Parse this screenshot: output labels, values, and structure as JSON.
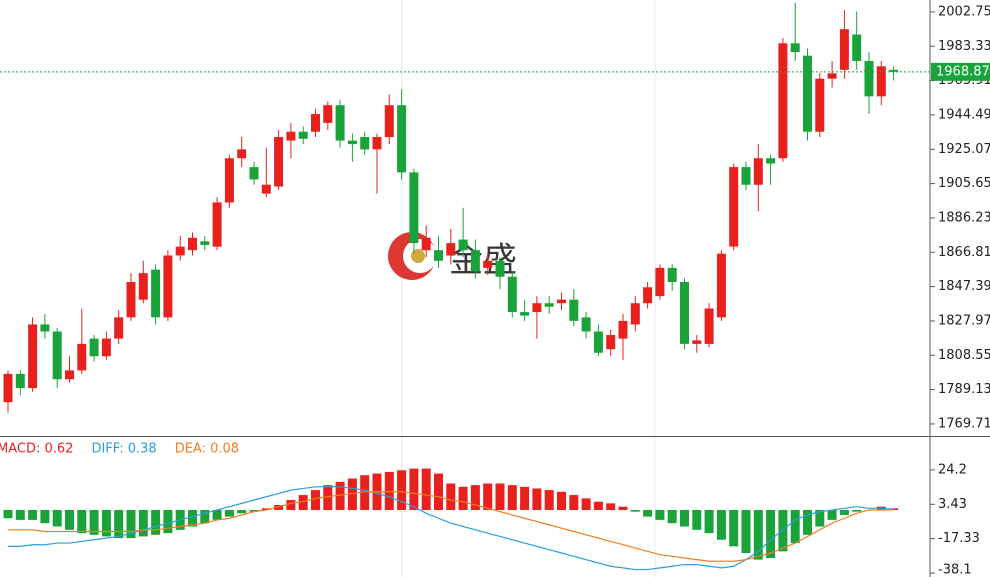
{
  "chart_data": {
    "type": "candlestick",
    "watermark": "金盛",
    "up_color": "#e8201e",
    "down_color": "#1aa33a",
    "open": [
      1782,
      1798,
      1790,
      1826,
      1822,
      1795,
      1800,
      1818,
      1808,
      1818,
      1830,
      1840,
      1857,
      1830,
      1865,
      1868,
      1873,
      1870,
      1895,
      1920,
      1915,
      1900,
      1904,
      1930,
      1935,
      1935,
      1940,
      1950,
      1930,
      1932,
      1925,
      1932,
      1950,
      1912,
      1868,
      1868,
      1865,
      1874,
      1868,
      1858,
      1862,
      1853,
      1833,
      1833,
      1838,
      1838,
      1840,
      1830,
      1822,
      1812,
      1818,
      1826,
      1838,
      1842,
      1858,
      1850,
      1815,
      1815,
      1830,
      1870,
      1915,
      1905,
      1920,
      1920,
      1985,
      1978,
      1935,
      1965,
      1970,
      1990,
      1975,
      1955,
      1970
    ],
    "high": [
      1800,
      1800,
      1830,
      1832,
      1824,
      1808,
      1835,
      1820,
      1822,
      1834,
      1855,
      1862,
      1860,
      1868,
      1876,
      1878,
      1876,
      1898,
      1922,
      1932,
      1918,
      1926,
      1936,
      1940,
      1938,
      1948,
      1952,
      1953,
      1934,
      1935,
      1934,
      1956,
      1959,
      1914,
      1882,
      1876,
      1880,
      1892,
      1874,
      1866,
      1864,
      1856,
      1840,
      1842,
      1842,
      1844,
      1846,
      1833,
      1826,
      1823,
      1832,
      1842,
      1850,
      1860,
      1860,
      1852,
      1820,
      1838,
      1868,
      1917,
      1918,
      1928,
      1922,
      1988,
      2008,
      1982,
      1968,
      1975,
      2004,
      2003,
      1980,
      1975,
      1972
    ],
    "low": [
      1776,
      1786,
      1788,
      1818,
      1790,
      1793,
      1798,
      1805,
      1806,
      1815,
      1828,
      1838,
      1826,
      1828,
      1862,
      1865,
      1868,
      1868,
      1892,
      1915,
      1905,
      1898,
      1902,
      1920,
      1928,
      1932,
      1936,
      1926,
      1918,
      1922,
      1900,
      1928,
      1908,
      1866,
      1864,
      1858,
      1860,
      1864,
      1852,
      1854,
      1846,
      1830,
      1828,
      1818,
      1832,
      1834,
      1825,
      1818,
      1808,
      1808,
      1806,
      1822,
      1835,
      1840,
      1845,
      1812,
      1810,
      1813,
      1828,
      1868,
      1902,
      1890,
      1905,
      1918,
      1975,
      1930,
      1932,
      1960,
      1965,
      1970,
      1945,
      1950,
      1964
    ],
    "close": [
      1798,
      1790,
      1826,
      1822,
      1795,
      1800,
      1815,
      1808,
      1818,
      1830,
      1850,
      1855,
      1830,
      1865,
      1870,
      1875,
      1871,
      1895,
      1920,
      1925,
      1908,
      1905,
      1932,
      1935,
      1931,
      1945,
      1950,
      1930,
      1928,
      1925,
      1932,
      1950,
      1912,
      1872,
      1875,
      1862,
      1872,
      1868,
      1856,
      1862,
      1853,
      1833,
      1831,
      1838,
      1836,
      1840,
      1828,
      1822,
      1810,
      1820,
      1828,
      1838,
      1847,
      1858,
      1850,
      1815,
      1817,
      1835,
      1866,
      1915,
      1905,
      1920,
      1917,
      1985,
      1980,
      1935,
      1965,
      1968,
      1993,
      1975,
      1955,
      1972,
      1968.87
    ],
    "ylim": [
      1762.9,
      2009.5
    ],
    "yticks": [
      2002.75,
      1983.33,
      1963.91,
      1944.49,
      1925.07,
      1905.65,
      1886.23,
      1866.81,
      1847.39,
      1827.97,
      1808.55,
      1789.13,
      1769.71
    ],
    "current_price": 1968.87,
    "current_color": "#1aa33a",
    "macd": {
      "labels": [
        {
          "text": "MACD: 0.62",
          "color": "#e8201e"
        },
        {
          "text": "DIFF: 0.38",
          "color": "#2e9de0"
        },
        {
          "text": "DEA: 0.08",
          "color": "#f07f20"
        }
      ],
      "histogram": [
        -5,
        -6,
        -6,
        -8,
        -10,
        -12,
        -14,
        -15,
        -16,
        -17,
        -17,
        -16,
        -15,
        -14,
        -12,
        -10,
        -8,
        -6,
        -4,
        -2,
        -1,
        1,
        3,
        6,
        9,
        12,
        15,
        17,
        19,
        21,
        22,
        23,
        24,
        25,
        25,
        22,
        16,
        14,
        15,
        16,
        16,
        15,
        14,
        13,
        12,
        11,
        9,
        7,
        5,
        4,
        2,
        -1,
        -4,
        -6,
        -8,
        -10,
        -12,
        -14,
        -18,
        -22,
        -26,
        -30,
        -29,
        -25,
        -20,
        -15,
        -10,
        -6,
        -3,
        -1,
        0,
        2,
        1
      ],
      "series": [
        {
          "name": "DIFF",
          "color": "#2e9de0",
          "values": [
            -22,
            -22,
            -21,
            -21,
            -20,
            -20,
            -19,
            -18,
            -17,
            -16,
            -14,
            -12,
            -10,
            -8,
            -6,
            -4,
            -2,
            0,
            2,
            4,
            6,
            8,
            10,
            12,
            13,
            14,
            14,
            14,
            13,
            12,
            10,
            8,
            5,
            2,
            -2,
            -5,
            -8,
            -10,
            -12,
            -14,
            -16,
            -18,
            -20,
            -22,
            -24,
            -26,
            -28,
            -30,
            -32,
            -34,
            -35,
            -36,
            -36,
            -35,
            -34,
            -33,
            -33,
            -34,
            -35,
            -34,
            -30,
            -25,
            -18,
            -12,
            -6,
            -3,
            -1,
            0,
            1,
            2,
            1,
            1,
            0.4
          ]
        },
        {
          "name": "DEA",
          "color": "#f07f20",
          "values": [
            -12,
            -12,
            -12,
            -13,
            -13,
            -13,
            -13,
            -13,
            -13,
            -13,
            -13,
            -12,
            -12,
            -11,
            -10,
            -9,
            -8,
            -6,
            -5,
            -3,
            -1,
            0,
            2,
            4,
            5,
            7,
            8,
            9,
            10,
            11,
            11,
            11,
            11,
            10,
            9,
            8,
            6,
            5,
            3,
            1,
            -1,
            -3,
            -5,
            -7,
            -9,
            -11,
            -13,
            -15,
            -17,
            -19,
            -21,
            -23,
            -25,
            -27,
            -28,
            -29,
            -30,
            -31,
            -31,
            -31,
            -30,
            -28,
            -26,
            -23,
            -20,
            -16,
            -12,
            -8,
            -5,
            -2,
            0,
            0,
            0.1
          ]
        }
      ],
      "ylim": [
        -40.5,
        44.1
      ],
      "yticks": [
        24.2,
        3.43,
        -17.33,
        -38.1
      ]
    }
  }
}
